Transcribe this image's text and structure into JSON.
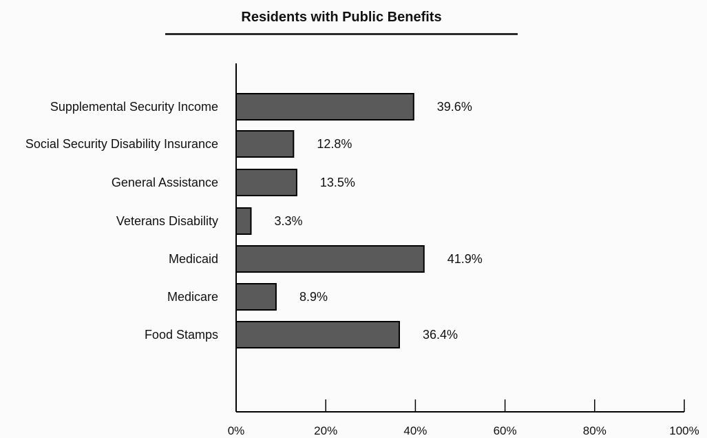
{
  "chart_data": {
    "type": "bar",
    "orientation": "horizontal",
    "title": "Residents with Public Benefits",
    "categories": [
      "Supplemental Security Income",
      "Social Security Disability Insurance",
      "General Assistance",
      "Veterans Disability",
      "Medicaid",
      "Medicare",
      "Food Stamps"
    ],
    "values": [
      39.6,
      12.8,
      13.5,
      3.3,
      41.9,
      8.9,
      36.4
    ],
    "value_labels": [
      "39.6%",
      "12.8%",
      "13.5%",
      "3.3%",
      "41.9%",
      "8.9%",
      "36.4%"
    ],
    "xlim": [
      0,
      100
    ],
    "x_ticks": [
      0,
      20,
      40,
      60,
      80,
      100
    ],
    "x_tick_labels": [
      "0%",
      "20%",
      "40%",
      "60%",
      "80%",
      "100%"
    ],
    "grid": false,
    "colors": {
      "bar_fill": "#5a5a5a",
      "bar_stroke": "#000000",
      "axis": "#000000"
    }
  }
}
